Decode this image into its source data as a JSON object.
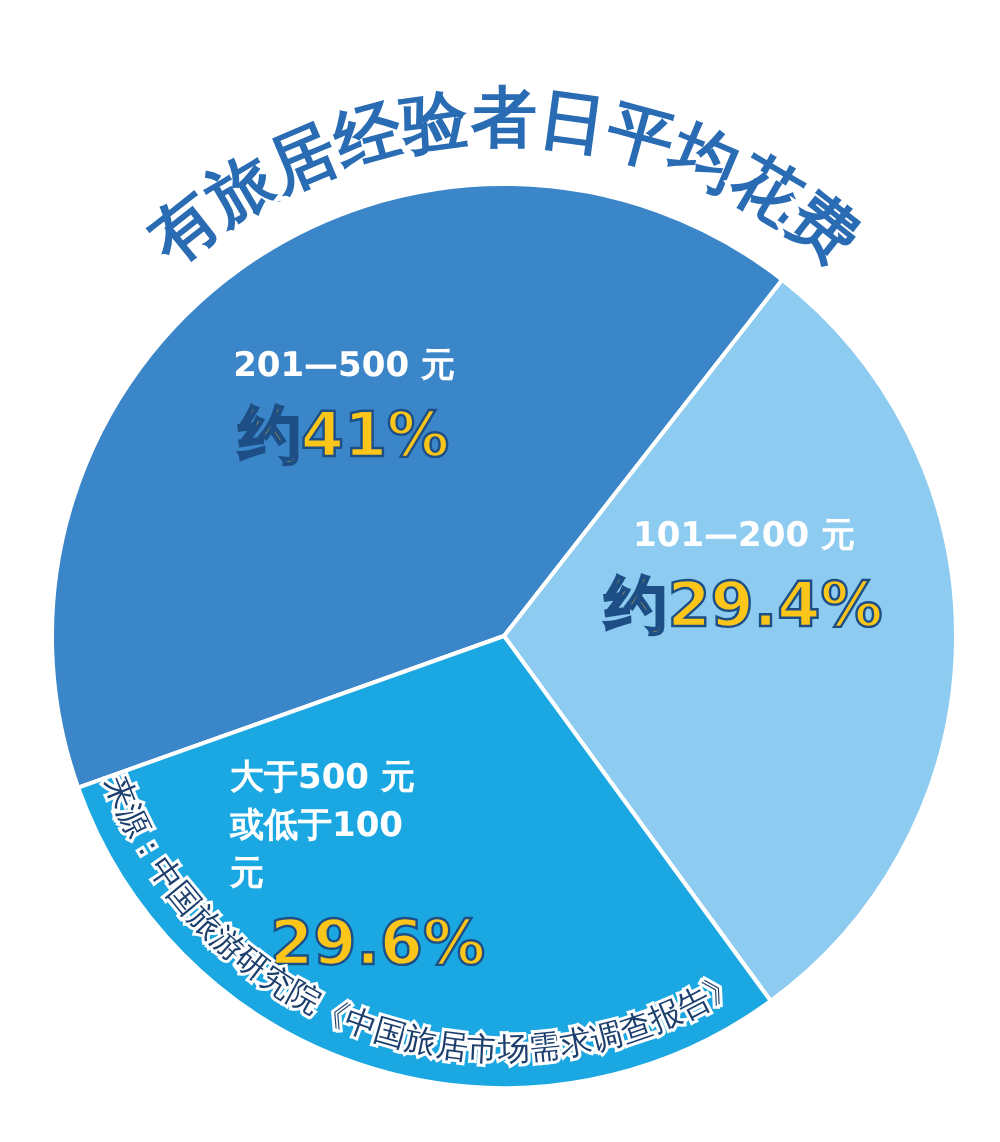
{
  "chart_data": {
    "type": "pie",
    "title": "有旅居经验者日平均花费",
    "categories": [
      "201—500 元",
      "101—200 元",
      "大于500 元或低于100 元"
    ],
    "values": [
      41,
      29.4,
      29.6
    ],
    "colors": [
      "#3b86c8",
      "#8dcbf0",
      "#1ba8e2"
    ],
    "value_labels": [
      "约41%",
      "约29.4%",
      "29.6%"
    ],
    "annotations": [
      "来源：中国旅游研究院《中国旅居市场需求调查报告》"
    ]
  }
}
